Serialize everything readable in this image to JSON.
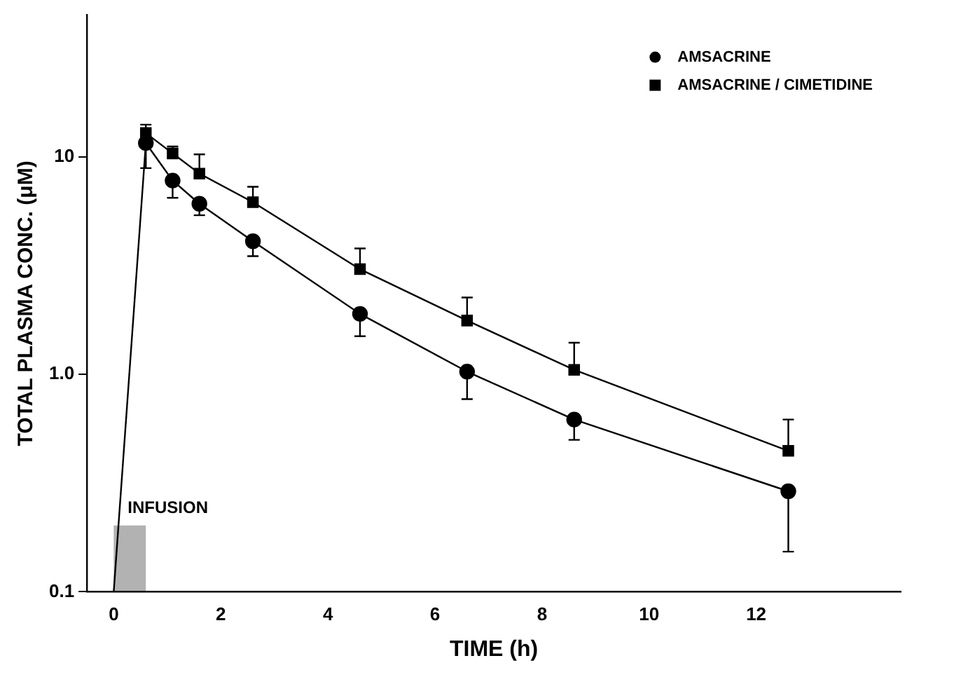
{
  "chart_data": {
    "type": "line",
    "xlabel": "TIME (h)",
    "ylabel": "TOTAL PLASMA CONC. (μM)",
    "log": "y",
    "xlim": [
      -0.5,
      14.7
    ],
    "xticks": [
      0,
      2,
      4,
      6,
      8,
      10,
      12
    ],
    "ylim": [
      0.1,
      45
    ],
    "yticks": [
      0.1,
      {
        "value": 1,
        "label": "1.0"
      },
      10
    ],
    "grid": false,
    "legend": "top right",
    "line_style": "solid",
    "bands": [
      {
        "axis": "x",
        "from": 0,
        "to": 0.6,
        "label": "INFUSION"
      }
    ],
    "series": [
      {
        "name": "AMSACRINE",
        "color": "#000000",
        "marker": "circle",
        "x": [
          0.6,
          1.1,
          1.6,
          2.6,
          4.6,
          6.6,
          8.6,
          12.6
        ],
        "values": [
          11.6,
          7.8,
          6.1,
          4.1,
          1.9,
          1.03,
          0.62,
          0.29
        ],
        "errors": [
          [
            8.9,
            11.6
          ],
          [
            6.5,
            7.8
          ],
          [
            5.4,
            6.1
          ],
          [
            3.5,
            4.1
          ],
          [
            1.5,
            1.9
          ],
          [
            0.77,
            1.03
          ],
          [
            0.5,
            0.62
          ],
          [
            0.153,
            0.29
          ]
        ]
      },
      {
        "name": "AMSACRINE / CIMETIDINE",
        "color": "#000000",
        "marker": "square",
        "x": [
          0.6,
          1.1,
          1.6,
          2.6,
          4.6,
          6.6,
          8.6,
          12.6
        ],
        "values": [
          12.9,
          10.4,
          8.4,
          6.2,
          3.05,
          1.77,
          1.05,
          0.445
        ],
        "errors": [
          [
            12.9,
            14.1
          ],
          [
            10.4,
            11.2
          ],
          [
            8.4,
            10.3
          ],
          [
            6.2,
            7.3
          ],
          [
            3.05,
            3.8
          ],
          [
            1.77,
            2.26
          ],
          [
            1.05,
            1.4
          ],
          [
            0.445,
            0.62
          ]
        ]
      },
      {
        "color": "#000000",
        "marker": "none",
        "x": [
          0,
          0.6
        ],
        "values": [
          0.1,
          11.6
        ]
      }
    ]
  }
}
